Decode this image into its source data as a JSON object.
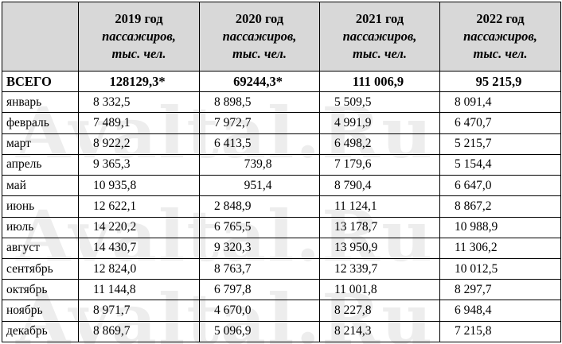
{
  "header": {
    "years": [
      "2019 год",
      "2020 год",
      "2021 год",
      "2022 год"
    ],
    "unit_line1": "пассажиров,",
    "unit_line2": "тыс. чел."
  },
  "watermark": "Avaltal.Ru",
  "rows": [
    {
      "label": "ВСЕГО",
      "values": [
        "128129,3*",
        "69244,3*",
        "111 006,9",
        "95 215,9"
      ],
      "total": true
    },
    {
      "label": "январь",
      "values": [
        "8 332,5",
        "8 898,5",
        "5 509,5",
        "8 091,4"
      ]
    },
    {
      "label": "февраль",
      "values": [
        "7 489,1",
        "7 972,7",
        "4 991,9",
        "6 470,7"
      ]
    },
    {
      "label": "март",
      "values": [
        "8 922,2",
        "6 413,5",
        "6 498,2",
        "5 215,7"
      ]
    },
    {
      "label": "апрель",
      "values": [
        "9 365,3",
        "739,8",
        "7 179,6",
        "5 154,4"
      ]
    },
    {
      "label": "май",
      "values": [
        "10 935,8",
        "951,4",
        "8 790,4",
        "6 647,0"
      ]
    },
    {
      "label": "июнь",
      "values": [
        "12 622,1",
        "2 848,9",
        "11 124,1",
        "8 867,2"
      ]
    },
    {
      "label": "июль",
      "values": [
        "14 220,2",
        "6 765,5",
        "13 178,7",
        "10 988,9"
      ]
    },
    {
      "label": "август",
      "values": [
        "14 430,7",
        "9 320,3",
        "13 950,9",
        "11 306,2"
      ]
    },
    {
      "label": "сентябрь",
      "values": [
        "12 824,0",
        "8 763,7",
        "12 339,7",
        "10 012,5"
      ]
    },
    {
      "label": "октябрь",
      "values": [
        "11 144,8",
        "6 797,8",
        "11 001,8",
        "8 297,7"
      ]
    },
    {
      "label": "ноябрь",
      "values": [
        "8 971,7",
        "4 670,0",
        "8 227,8",
        "6 948,4"
      ]
    },
    {
      "label": "декабрь",
      "values": [
        "8 869,7",
        "5 096,9",
        "8 214,3",
        "7 215,8"
      ]
    }
  ]
}
